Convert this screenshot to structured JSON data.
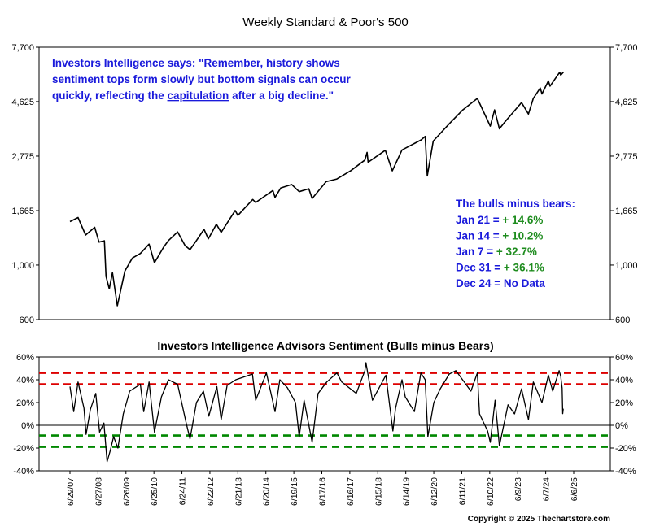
{
  "chart_data": [
    {
      "type": "line",
      "title": "Weekly Standard & Poor's 500",
      "yscale": "log",
      "ylim": [
        600,
        7700
      ],
      "yticks": [
        600,
        1000,
        1665,
        2775,
        4625,
        7700
      ],
      "ytick_labels": [
        "600",
        "1,000",
        "1,665",
        "2,775",
        "4,625",
        "7,700"
      ],
      "xlim": [
        "2007-06-29",
        "2025-06-06"
      ],
      "grid": false,
      "annotation": {
        "before": "Investors Intelligence says: \"Remember, history shows sentiment tops form slowly but bottom signals can occur quickly, reflecting the ",
        "underlined": "capitulation",
        "after": " after a big decline.\"",
        "color": "#1a1adb"
      },
      "bulls_minus_bears_box": {
        "heading": "The bulls minus bears:",
        "rows": [
          {
            "label": "Jan 21 = ",
            "value": "+ 14.6%",
            "value_color": "#1e8c1e"
          },
          {
            "label": "Jan 14 = ",
            "value": "+ 10.2%",
            "value_color": "#1e8c1e"
          },
          {
            "label": "Jan 7 = ",
            "value": "+ 32.7%",
            "value_color": "#1e8c1e"
          },
          {
            "label": "Dec 31 = ",
            "value": "+ 36.1%",
            "value_color": "#1e8c1e"
          },
          {
            "label": "Dec 24 = ",
            "value": "No Data",
            "value_color": "#1a1adb"
          }
        ]
      },
      "series": [
        {
          "color": "#000000",
          "points": [
            [
              "2007-06-29",
              1503
            ],
            [
              "2007-10-12",
              1561
            ],
            [
              "2008-01-18",
              1325
            ],
            [
              "2008-05-16",
              1425
            ],
            [
              "2008-07-11",
              1240
            ],
            [
              "2008-09-19",
              1255
            ],
            [
              "2008-10-10",
              899
            ],
            [
              "2008-11-21",
              800
            ],
            [
              "2009-01-02",
              931
            ],
            [
              "2009-03-06",
              683
            ],
            [
              "2009-06-12",
              946
            ],
            [
              "2009-09-18",
              1068
            ],
            [
              "2009-12-31",
              1115
            ],
            [
              "2010-04-23",
              1217
            ],
            [
              "2010-07-02",
              1022
            ],
            [
              "2010-10-29",
              1183
            ],
            [
              "2010-12-31",
              1258
            ],
            [
              "2011-04-29",
              1364
            ],
            [
              "2011-08-05",
              1199
            ],
            [
              "2011-10-07",
              1155
            ],
            [
              "2011-12-30",
              1258
            ],
            [
              "2012-04-06",
              1398
            ],
            [
              "2012-06-01",
              1278
            ],
            [
              "2012-09-14",
              1466
            ],
            [
              "2012-11-16",
              1359
            ],
            [
              "2013-05-17",
              1667
            ],
            [
              "2013-06-21",
              1592
            ],
            [
              "2013-12-31",
              1848
            ],
            [
              "2014-02-07",
              1797
            ],
            [
              "2014-09-19",
              2010
            ],
            [
              "2014-10-17",
              1886
            ],
            [
              "2014-12-31",
              2059
            ],
            [
              "2015-05-22",
              2126
            ],
            [
              "2015-08-28",
              1989
            ],
            [
              "2015-12-31",
              2044
            ],
            [
              "2016-02-12",
              1865
            ],
            [
              "2016-08-12",
              2184
            ],
            [
              "2016-12-30",
              2239
            ],
            [
              "2017-06-30",
              2423
            ],
            [
              "2017-12-29",
              2674
            ],
            [
              "2018-01-26",
              2873
            ],
            [
              "2018-02-09",
              2620
            ],
            [
              "2018-09-21",
              2930
            ],
            [
              "2018-12-21",
              2417
            ],
            [
              "2019-04-26",
              2940
            ],
            [
              "2019-12-31",
              3231
            ],
            [
              "2020-02-21",
              3338
            ],
            [
              "2020-03-20",
              2305
            ],
            [
              "2020-06-05",
              3194
            ],
            [
              "2020-12-31",
              3756
            ],
            [
              "2021-06-25",
              4281
            ],
            [
              "2021-12-31",
              4766
            ],
            [
              "2022-06-17",
              3675
            ],
            [
              "2022-08-12",
              4280
            ],
            [
              "2022-10-14",
              3583
            ],
            [
              "2022-12-30",
              3840
            ],
            [
              "2023-07-28",
              4582
            ],
            [
              "2023-10-27",
              4117
            ],
            [
              "2023-12-29",
              4770
            ],
            [
              "2024-03-28",
              5254
            ],
            [
              "2024-04-19",
              4967
            ],
            [
              "2024-07-12",
              5615
            ],
            [
              "2024-08-02",
              5346
            ],
            [
              "2024-12-06",
              6090
            ],
            [
              "2024-12-20",
              5930
            ],
            [
              "2025-01-24",
              6101
            ]
          ]
        }
      ]
    },
    {
      "type": "line",
      "title": "Investors Intelligence Advisors Sentiment (Bulls minus Bears)",
      "ylim": [
        -40,
        60
      ],
      "yticks": [
        -40,
        -20,
        0,
        20,
        40,
        60
      ],
      "ytick_labels": [
        "-40%",
        "-20%",
        "0%",
        "20%",
        "40%",
        "60%"
      ],
      "xlim": [
        "2007-06-29",
        "2025-06-06"
      ],
      "xticks": [
        "2007-06-29",
        "2008-06-27",
        "2009-06-26",
        "2010-06-25",
        "2011-06-24",
        "2012-06-22",
        "2013-06-21",
        "2014-06-20",
        "2015-06-19",
        "2016-06-17",
        "2017-06-16",
        "2018-06-15",
        "2019-06-14",
        "2020-06-12",
        "2021-06-11",
        "2022-06-10",
        "2023-06-09",
        "2024-06-07",
        "2025-06-06"
      ],
      "xtick_labels": [
        "6/29/07",
        "6/27/08",
        "6/26/09",
        "6/25/10",
        "6/24/11",
        "6/22/12",
        "6/21/13",
        "6/20/14",
        "6/19/15",
        "6/17/16",
        "6/16/17",
        "6/15/18",
        "6/14/19",
        "6/12/20",
        "6/11/21",
        "6/10/22",
        "6/9/23",
        "6/7/24",
        "6/6/25"
      ],
      "reference_lines": [
        {
          "y": 46,
          "color": "#dd0000",
          "style": "dashed"
        },
        {
          "y": 36,
          "color": "#dd0000",
          "style": "dashed"
        },
        {
          "y": 0,
          "color": "#000000",
          "style": "solid"
        },
        {
          "y": -9,
          "color": "#008800",
          "style": "dashed"
        },
        {
          "y": -19,
          "color": "#008800",
          "style": "dashed"
        }
      ],
      "series": [
        {
          "color": "#000000",
          "points": [
            [
              "2007-06-29",
              34
            ],
            [
              "2007-08-17",
              12
            ],
            [
              "2007-10-12",
              38
            ],
            [
              "2007-12-28",
              15
            ],
            [
              "2008-01-25",
              -8
            ],
            [
              "2008-03-21",
              14
            ],
            [
              "2008-05-30",
              28
            ],
            [
              "2008-07-18",
              -6
            ],
            [
              "2008-09-12",
              2
            ],
            [
              "2008-10-24",
              -32
            ],
            [
              "2008-12-05",
              -22
            ],
            [
              "2009-01-16",
              -10
            ],
            [
              "2009-03-13",
              -20
            ],
            [
              "2009-05-22",
              10
            ],
            [
              "2009-08-14",
              30
            ],
            [
              "2009-12-31",
              36
            ],
            [
              "2010-02-12",
              12
            ],
            [
              "2010-04-23",
              38
            ],
            [
              "2010-07-02",
              -6
            ],
            [
              "2010-10-01",
              25
            ],
            [
              "2010-12-31",
              40
            ],
            [
              "2011-04-29",
              36
            ],
            [
              "2011-08-19",
              2
            ],
            [
              "2011-10-07",
              -12
            ],
            [
              "2011-12-30",
              20
            ],
            [
              "2012-03-30",
              30
            ],
            [
              "2012-06-08",
              8
            ],
            [
              "2012-09-21",
              34
            ],
            [
              "2012-11-16",
              5
            ],
            [
              "2013-02-01",
              35
            ],
            [
              "2013-05-24",
              40
            ],
            [
              "2013-12-27",
              45
            ],
            [
              "2014-02-07",
              22
            ],
            [
              "2014-06-27",
              46
            ],
            [
              "2014-10-17",
              12
            ],
            [
              "2014-12-19",
              40
            ],
            [
              "2015-03-27",
              33
            ],
            [
              "2015-07-10",
              20
            ],
            [
              "2015-08-28",
              -10
            ],
            [
              "2015-10-30",
              22
            ],
            [
              "2016-02-12",
              -15
            ],
            [
              "2016-04-29",
              28
            ],
            [
              "2016-08-19",
              38
            ],
            [
              "2016-12-30",
              46
            ],
            [
              "2017-03-03",
              38
            ],
            [
              "2017-09-08",
              28
            ],
            [
              "2017-12-29",
              48
            ],
            [
              "2018-01-12",
              55
            ],
            [
              "2018-04-06",
              22
            ],
            [
              "2018-09-28",
              44
            ],
            [
              "2018-12-28",
              -5
            ],
            [
              "2019-02-01",
              15
            ],
            [
              "2019-04-26",
              40
            ],
            [
              "2019-06-07",
              25
            ],
            [
              "2019-10-04",
              12
            ],
            [
              "2019-12-27",
              46
            ],
            [
              "2020-02-21",
              40
            ],
            [
              "2020-03-27",
              -10
            ],
            [
              "2020-06-12",
              20
            ],
            [
              "2020-09-04",
              32
            ],
            [
              "2020-12-31",
              45
            ],
            [
              "2021-03-26",
              48
            ],
            [
              "2021-10-08",
              30
            ],
            [
              "2021-12-31",
              46
            ],
            [
              "2022-01-28",
              10
            ],
            [
              "2022-05-13",
              -5
            ],
            [
              "2022-06-17",
              -15
            ],
            [
              "2022-08-19",
              22
            ],
            [
              "2022-10-14",
              -18
            ],
            [
              "2023-02-03",
              18
            ],
            [
              "2023-04-28",
              10
            ],
            [
              "2023-07-28",
              32
            ],
            [
              "2023-10-27",
              5
            ],
            [
              "2023-12-29",
              38
            ],
            [
              "2024-04-19",
              20
            ],
            [
              "2024-07-12",
              44
            ],
            [
              "2024-09-06",
              30
            ],
            [
              "2024-11-29",
              48
            ],
            [
              "2024-12-20",
              43
            ],
            [
              "2024-12-31",
              36.1
            ],
            [
              "2025-01-07",
              32.7
            ],
            [
              "2025-01-14",
              10.2
            ],
            [
              "2025-01-21",
              14.6
            ]
          ]
        }
      ]
    }
  ],
  "copyright": "Copyright © 2025 Thechartstore.com"
}
